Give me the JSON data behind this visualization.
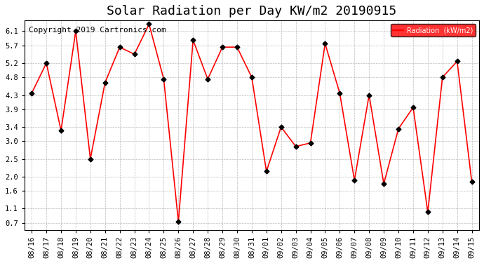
{
  "title": "Solar Radiation per Day KW/m2 20190915",
  "copyright": "Copyright 2019 Cartronics.com",
  "legend_label": "Radiation  (kW/m2)",
  "dates": [
    "08/16",
    "08/17",
    "08/18",
    "08/19",
    "08/20",
    "08/21",
    "08/22",
    "08/23",
    "08/24",
    "08/25",
    "08/26",
    "08/27",
    "08/28",
    "08/29",
    "08/30",
    "08/31",
    "09/01",
    "09/02",
    "09/03",
    "09/04",
    "09/05",
    "09/06",
    "09/07",
    "09/08",
    "09/09",
    "09/10",
    "09/11",
    "09/12",
    "09/13",
    "09/14",
    "09/15"
  ],
  "values": [
    4.35,
    5.2,
    3.3,
    6.1,
    2.5,
    4.65,
    5.65,
    5.45,
    6.3,
    4.75,
    0.73,
    5.85,
    4.75,
    5.65,
    5.65,
    4.8,
    2.15,
    3.4,
    2.85,
    2.95,
    5.75,
    4.35,
    1.9,
    4.3,
    1.8,
    3.35,
    3.95,
    1.0,
    4.8,
    5.25,
    1.85
  ],
  "yticks": [
    0.7,
    1.1,
    1.6,
    2.0,
    2.5,
    3.0,
    3.4,
    3.9,
    4.3,
    4.8,
    5.2,
    5.7,
    6.1
  ],
  "ylim": [
    0.5,
    6.4
  ],
  "line_color": "red",
  "marker_color": "black",
  "bg_color": "#ffffff",
  "plot_bg_color": "#ffffff",
  "grid_color": "#aaaaaa",
  "legend_bg": "red",
  "legend_text_color": "white",
  "title_fontsize": 13,
  "copyright_fontsize": 8,
  "tick_fontsize": 7.5
}
